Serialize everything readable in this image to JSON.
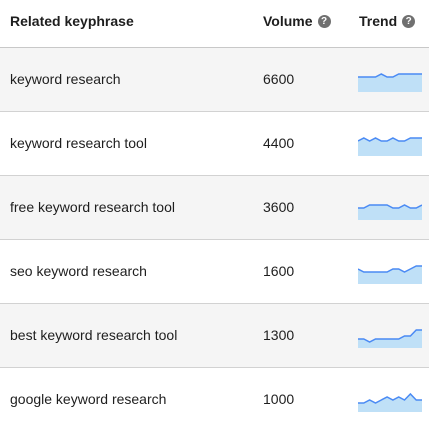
{
  "colors": {
    "header_text": "#1e1e1e",
    "row_alt_background": "#f5f5f5",
    "trend_line": "#4a8af4",
    "trend_fill": "#bfe0f7",
    "help_icon": "#707070"
  },
  "header": {
    "keyphrase_label": "Related keyphrase",
    "volume_label": "Volume",
    "trend_label": "Trend",
    "help_icon_glyph": "?"
  },
  "rows": [
    {
      "keyphrase": "keyword research",
      "volume": "6600",
      "trend": [
        5,
        5,
        5,
        5,
        6,
        5,
        5,
        6,
        6,
        6,
        6,
        6
      ]
    },
    {
      "keyphrase": "keyword research tool",
      "volume": "4400",
      "trend": [
        5,
        6,
        5,
        6,
        5,
        5,
        6,
        5,
        5,
        6,
        6,
        6
      ]
    },
    {
      "keyphrase": "free keyword research tool",
      "volume": "3600",
      "trend": [
        4,
        4,
        5,
        5,
        5,
        5,
        4,
        4,
        5,
        4,
        4,
        5
      ]
    },
    {
      "keyphrase": "seo keyword research",
      "volume": "1600",
      "trend": [
        5,
        4,
        4,
        4,
        4,
        4,
        5,
        5,
        4,
        5,
        6,
        6
      ]
    },
    {
      "keyphrase": "best keyword research tool",
      "volume": "1300",
      "trend": [
        3,
        3,
        2,
        3,
        3,
        3,
        3,
        3,
        4,
        4,
        6,
        6
      ]
    },
    {
      "keyphrase": "google keyword research",
      "volume": "1000",
      "trend": [
        3,
        3,
        4,
        3,
        4,
        5,
        4,
        5,
        4,
        6,
        4,
        4
      ]
    }
  ]
}
